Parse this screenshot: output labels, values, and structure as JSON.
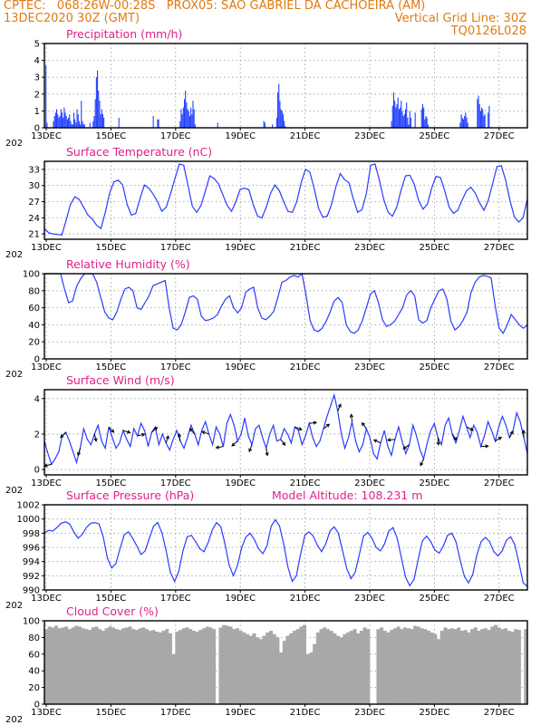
{
  "header": {
    "line1_left": "CPTEC:   068:26W-00:28S   PROX05: SAO GABRIEL DA CACHOEIRA (AM)",
    "line2_left": "13DEC2020 30Z (GMT)",
    "line2_right": "Vertical Grid Line: 30Z",
    "line3_right": "TQ0126L028"
  },
  "chart_data": [
    {
      "type": "bar",
      "title": "Precipitation (mm/h)",
      "x_labels": [
        "13DEC",
        "15DEC",
        "17DEC",
        "19DEC",
        "21DEC",
        "23DEC",
        "25DEC",
        "27DEC"
      ],
      "ylim": [
        0,
        5
      ],
      "yticks": [
        0,
        1,
        2,
        3,
        4,
        5
      ],
      "values": [
        0,
        3.7,
        0.3,
        0,
        0,
        0,
        0,
        0,
        0.4,
        0.7,
        0.9,
        1.1,
        0.8,
        0.6,
        0.7,
        1.1,
        0.9,
        0.6,
        1.2,
        0.9,
        0.7,
        0.5,
        0.6,
        0.8,
        0.4,
        0.2,
        0.2,
        0.9,
        0.5,
        0.3,
        1.1,
        0.8,
        0.4,
        0.2,
        1.6,
        0.4,
        0.2,
        0.2,
        0,
        0,
        0,
        0,
        0.3,
        0,
        0,
        0.4,
        0.7,
        1.7,
        3.0,
        3.4,
        2.2,
        1.6,
        0.8,
        1.1,
        0.8,
        0.6,
        0,
        0,
        0,
        0,
        0,
        0,
        0,
        0,
        0,
        0,
        0,
        0,
        0,
        0.6,
        0,
        0,
        0,
        0,
        0,
        0,
        0,
        0,
        0,
        0,
        0,
        0,
        0,
        0,
        0,
        0,
        0,
        0,
        0,
        0,
        0,
        0,
        0,
        0,
        0,
        0,
        0,
        0,
        0,
        0,
        0,
        0.7,
        0,
        0,
        0,
        0.5,
        0.5,
        0,
        0,
        0,
        0,
        0,
        0,
        0,
        0,
        0,
        0,
        0,
        0,
        0,
        0,
        0,
        0,
        0,
        0,
        0,
        0.4,
        1.1,
        0.8,
        1.2,
        1.7,
        2.2,
        1.5,
        1.1,
        1.0,
        0.7,
        1.2,
        0.8,
        1.6,
        1.1,
        0.2,
        0,
        0,
        0,
        0,
        0,
        0,
        0,
        0,
        0,
        0,
        0,
        0,
        0,
        0,
        0,
        0,
        0,
        0,
        0,
        0,
        0.3,
        0,
        0,
        0,
        0,
        0,
        0,
        0,
        0,
        0,
        0,
        0,
        0,
        0,
        0,
        0,
        0,
        0,
        0,
        0,
        0,
        0,
        0,
        0,
        0,
        0,
        0,
        0,
        0,
        0,
        0,
        0,
        0,
        0,
        0,
        0,
        0,
        0,
        0,
        0,
        0,
        0,
        0,
        0.4,
        0.3,
        0,
        0,
        0,
        0,
        0,
        0,
        0.2,
        0,
        0,
        0,
        0.6,
        2.1,
        2.6,
        1.6,
        1.1,
        1.0,
        0.8,
        0.4,
        0.1,
        0,
        0,
        0,
        0,
        0,
        0,
        0,
        0,
        0,
        0,
        0,
        0,
        0,
        0,
        0,
        0,
        0,
        0,
        0,
        0,
        0,
        0,
        0,
        0,
        0,
        0,
        0,
        0,
        0,
        0,
        0,
        0,
        0,
        0,
        0,
        0,
        0,
        0,
        0,
        0,
        0,
        0,
        0,
        0,
        0,
        0,
        0,
        0,
        0,
        0,
        0,
        0,
        0,
        0,
        0,
        0,
        0,
        0,
        0,
        0,
        0,
        0,
        0,
        0,
        0,
        0,
        0,
        0,
        0,
        0,
        0,
        0,
        0,
        0,
        0,
        0,
        0,
        0,
        0,
        0,
        0,
        0,
        0,
        0,
        0,
        0,
        0,
        0,
        0,
        0,
        0,
        0,
        0,
        0,
        0,
        0,
        0,
        0,
        0.4,
        1.3,
        2.1,
        1.6,
        1.2,
        1.4,
        1.8,
        1.1,
        1.2,
        1.6,
        1.0,
        0.7,
        0.8,
        1.1,
        1.5,
        0.6,
        0.2,
        1.0,
        0.6,
        0,
        0,
        0,
        0.9,
        0,
        0,
        0,
        0,
        0,
        1.1,
        1.4,
        1.2,
        0.5,
        0.7,
        0.6,
        0.2,
        0,
        0,
        0,
        0,
        0,
        0,
        0,
        0,
        0,
        0,
        0,
        0,
        0,
        0,
        0,
        0,
        0,
        0,
        0,
        0,
        0,
        0,
        0,
        0,
        0,
        0,
        0,
        0,
        0,
        0.3,
        0.8,
        0.6,
        0.5,
        0.7,
        0.9,
        0.6,
        0.3,
        0,
        0,
        0,
        0,
        0,
        0,
        0,
        0,
        1.7,
        1.9,
        1.4,
        1.0,
        1.2,
        1.1,
        0.7,
        0.8,
        0,
        0,
        0.9,
        1.3,
        0,
        0,
        0,
        0,
        0,
        0,
        0,
        0,
        0,
        0,
        0,
        0,
        0,
        0,
        0,
        0,
        0,
        0,
        0,
        0,
        0,
        0,
        0,
        0,
        0,
        0,
        0,
        0,
        0,
        0,
        0,
        0,
        0,
        0,
        0
      ]
    },
    {
      "type": "line",
      "title": "Surface Temperature (nC)",
      "x_labels": [
        "13DEC",
        "15DEC",
        "17DEC",
        "19DEC",
        "21DEC",
        "23DEC",
        "25DEC",
        "27DEC"
      ],
      "ylim": [
        20,
        34.5
      ],
      "yticks": [
        21,
        24,
        27,
        30,
        33
      ],
      "values": [
        22.0,
        21.2,
        21.0,
        20.9,
        20.8,
        23.5,
        26.5,
        27.9,
        27.4,
        26.0,
        24.5,
        23.8,
        22.6,
        22.0,
        25.0,
        28.6,
        30.7,
        31.0,
        30.1,
        26.5,
        24.5,
        24.8,
        27.6,
        30.1,
        29.5,
        28.4,
        27.0,
        25.2,
        26.0,
        28.5,
        31.3,
        34.0,
        33.8,
        30.0,
        26.1,
        25.0,
        26.3,
        29.0,
        31.8,
        31.3,
        30.3,
        28.3,
        26.3,
        25.2,
        27.0,
        29.3,
        29.5,
        29.2,
        26.4,
        24.3,
        24.0,
        26.0,
        28.6,
        30.1,
        29.0,
        27.0,
        25.2,
        25.0,
        27.0,
        30.5,
        33.0,
        32.5,
        29.5,
        25.8,
        24.1,
        24.3,
        26.5,
        29.8,
        32.2,
        31.1,
        30.5,
        27.5,
        25.0,
        25.5,
        28.5,
        33.8,
        34.0,
        31.0,
        27.4,
        25.0,
        24.3,
        26.0,
        29.2,
        31.8,
        31.9,
        30.2,
        27.2,
        25.6,
        26.5,
        29.5,
        31.7,
        31.5,
        29.0,
        26.0,
        24.8,
        25.4,
        27.3,
        29.0,
        29.7,
        28.6,
        26.8,
        25.4,
        27.2,
        30.3,
        33.5,
        33.7,
        31.0,
        27.2,
        24.2,
        23.2,
        24.0,
        27.5
      ]
    },
    {
      "type": "line",
      "title": "Relative Humidity (%)",
      "x_labels": [
        "13DEC",
        "15DEC",
        "17DEC",
        "19DEC",
        "21DEC",
        "23DEC",
        "25DEC",
        "27DEC"
      ],
      "ylim": [
        0,
        100
      ],
      "yticks": [
        0,
        20,
        40,
        60,
        80,
        100
      ],
      "values": [
        100,
        100,
        100,
        100,
        100,
        82,
        66,
        68,
        85,
        94,
        100,
        100,
        100,
        90,
        72,
        55,
        48,
        46,
        55,
        70,
        82,
        84,
        80,
        60,
        58,
        66,
        74,
        86,
        88,
        90,
        92,
        60,
        36,
        34,
        40,
        55,
        72,
        74,
        70,
        50,
        45,
        46,
        48,
        52,
        62,
        70,
        74,
        60,
        54,
        60,
        78,
        82,
        84,
        60,
        48,
        46,
        50,
        56,
        72,
        90,
        92,
        96,
        98,
        96,
        100,
        75,
        45,
        34,
        32,
        36,
        44,
        55,
        68,
        72,
        66,
        40,
        32,
        30,
        34,
        45,
        60,
        76,
        80,
        66,
        46,
        38,
        40,
        44,
        52,
        60,
        75,
        80,
        74,
        46,
        42,
        45,
        60,
        70,
        80,
        82,
        70,
        44,
        34,
        38,
        45,
        55,
        78,
        90,
        96,
        98,
        97,
        95,
        62,
        36,
        30,
        40,
        52,
        46,
        40,
        36,
        40
      ]
    },
    {
      "type": "line",
      "title": "Surface Wind (m/s)",
      "x_labels": [
        "13DEC",
        "15DEC",
        "17DEC",
        "19DEC",
        "21DEC",
        "23DEC",
        "25DEC",
        "27DEC"
      ],
      "ylim": [
        -0.3,
        4.5
      ],
      "yticks": [
        0,
        2,
        4
      ],
      "values": [
        1.6,
        0.9,
        0.3,
        0.6,
        1.0,
        1.9,
        2.1,
        1.6,
        1.0,
        0.4,
        1.2,
        2.3,
        1.7,
        1.4,
        2.0,
        2.5,
        1.6,
        1.2,
        2.4,
        1.8,
        1.2,
        1.5,
        2.2,
        1.7,
        1.3,
        2.3,
        1.9,
        2.6,
        2.2,
        1.3,
        2.1,
        2.4,
        1.4,
        2.0,
        1.5,
        1.1,
        1.7,
        2.2,
        1.6,
        1.2,
        1.8,
        2.5,
        2.0,
        1.4,
        2.2,
        2.7,
        2.0,
        1.4,
        2.4,
        2.0,
        1.3,
        2.6,
        3.1,
        2.5,
        1.6,
        2.0,
        2.9,
        1.9,
        1.4,
        2.3,
        2.5,
        1.8,
        1.2,
        2.0,
        2.5,
        1.6,
        1.7,
        2.3,
        2.0,
        1.5,
        2.4,
        2.2,
        1.4,
        1.9,
        2.6,
        1.8,
        1.3,
        1.6,
        2.3,
        3.0,
        3.6,
        4.2,
        3.3,
        2.0,
        1.2,
        1.8,
        2.7,
        1.6,
        1.0,
        1.4,
        2.3,
        1.8,
        0.9,
        0.6,
        1.5,
        2.2,
        1.3,
        0.8,
        1.7,
        2.4,
        1.6,
        0.9,
        1.4,
        2.5,
        1.9,
        1.1,
        0.6,
        1.5,
        2.2,
        2.6,
        1.8,
        1.4,
        2.5,
        2.9,
        2.0,
        1.5,
        2.2,
        3.0,
        2.4,
        1.8,
        2.5,
        2.1,
        1.3,
        1.9,
        2.7,
        2.2,
        1.6,
        2.4,
        3.0,
        2.5,
        1.8,
        2.2,
        3.2,
        2.7,
        1.8,
        0.9
      ]
    },
    {
      "type": "line",
      "title": "Surface Pressure (hPa)",
      "annotation": "Model Altitude: 108.231  m",
      "x_labels": [
        "13DEC",
        "15DEC",
        "17DEC",
        "19DEC",
        "21DEC",
        "23DEC",
        "25DEC",
        "27DEC"
      ],
      "ylim": [
        990,
        1002
      ],
      "yticks": [
        990,
        992,
        994,
        996,
        998,
        1000,
        1002
      ],
      "values": [
        998.0,
        998.4,
        998.3,
        998.8,
        999.4,
        999.6,
        999.3,
        998.2,
        997.3,
        997.8,
        998.8,
        999.4,
        999.5,
        999.3,
        997.5,
        994.5,
        993.1,
        993.7,
        995.8,
        997.8,
        998.2,
        997.3,
        996.2,
        995.0,
        995.5,
        997.3,
        999.0,
        999.5,
        998.0,
        995.5,
        992.5,
        991.2,
        992.6,
        995.5,
        997.5,
        997.7,
        996.8,
        995.8,
        995.4,
        996.7,
        998.5,
        999.5,
        998.9,
        996.5,
        993.5,
        992.0,
        993.5,
        996.0,
        997.5,
        998.0,
        997.1,
        995.8,
        995.1,
        996.2,
        999.0,
        999.9,
        999.0,
        996.4,
        993.2,
        991.2,
        992.0,
        995.0,
        997.7,
        998.2,
        997.6,
        996.3,
        995.4,
        996.5,
        998.3,
        998.9,
        998.0,
        995.5,
        993.0,
        991.6,
        992.5,
        995.0,
        997.6,
        998.1,
        997.3,
        996.0,
        995.5,
        996.5,
        998.3,
        998.8,
        997.3,
        994.5,
        991.8,
        990.6,
        991.5,
        994.3,
        996.9,
        997.6,
        996.8,
        995.6,
        995.2,
        996.2,
        997.7,
        998.0,
        996.8,
        994.2,
        991.9,
        991.0,
        992.2,
        995.0,
        996.8,
        997.4,
        996.8,
        995.4,
        994.8,
        995.5,
        997.0,
        997.5,
        996.4,
        993.8,
        991.0,
        990.5
      ]
    },
    {
      "type": "area",
      "title": "Cloud Cover (%)",
      "x_labels": [
        "13DEC",
        "15DEC",
        "17DEC",
        "19DEC",
        "21DEC",
        "23DEC",
        "25DEC",
        "27DEC"
      ],
      "ylim": [
        0,
        100
      ],
      "yticks": [
        0,
        20,
        40,
        60,
        80,
        100
      ],
      "values": [
        90,
        93,
        92,
        94,
        91,
        92,
        93,
        90,
        92,
        94,
        93,
        91,
        90,
        89,
        92,
        93,
        90,
        88,
        91,
        93,
        92,
        90,
        89,
        91,
        92,
        93,
        90,
        89,
        91,
        92,
        90,
        88,
        89,
        87,
        86,
        88,
        90,
        85,
        60,
        87,
        89,
        91,
        92,
        90,
        88,
        87,
        89,
        91,
        93,
        92,
        90,
        0,
        92,
        95,
        94,
        93,
        90,
        91,
        88,
        86,
        84,
        82,
        85,
        80,
        78,
        82,
        86,
        88,
        84,
        80,
        62,
        76,
        82,
        85,
        88,
        90,
        93,
        95,
        60,
        62,
        72,
        86,
        90,
        92,
        90,
        88,
        85,
        82,
        80,
        84,
        86,
        88,
        90,
        85,
        88,
        92,
        90,
        0,
        0,
        90,
        92,
        88,
        86,
        89,
        91,
        93,
        90,
        92,
        91,
        90,
        94,
        93,
        91,
        90,
        88,
        86,
        84,
        78,
        88,
        92,
        90,
        91,
        90,
        92,
        88,
        89,
        86,
        90,
        92,
        88,
        90,
        91,
        89,
        93,
        95,
        92,
        90,
        91,
        88,
        87,
        90,
        89,
        0,
        90
      ]
    }
  ]
}
